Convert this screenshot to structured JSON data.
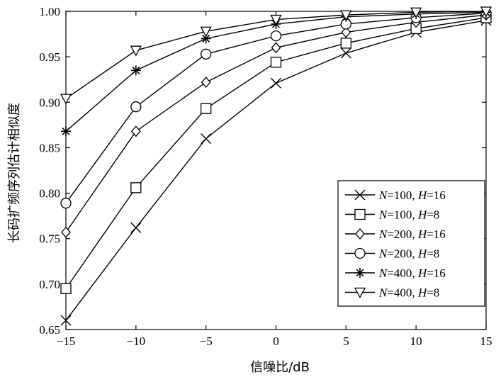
{
  "chart_data": {
    "type": "line",
    "xlabel": "信噪比/dB",
    "ylabel": "长码扩频序列估计相似度",
    "xlim": [
      -15,
      15
    ],
    "ylim": [
      0.65,
      1.0
    ],
    "xticks": [
      "−15",
      "−10",
      "−5",
      "0",
      "5",
      "10",
      "15"
    ],
    "xtick_values": [
      -15,
      -10,
      -5,
      0,
      5,
      10,
      15
    ],
    "yticks": [
      "0.65",
      "0.70",
      "0.75",
      "0.80",
      "0.85",
      "0.90",
      "0.95",
      "1.00"
    ],
    "ytick_values": [
      0.65,
      0.7,
      0.75,
      0.8,
      0.85,
      0.9,
      0.95,
      1.0
    ],
    "x": [
      -15,
      -10,
      -5,
      0,
      5,
      10,
      15
    ],
    "grid": false,
    "legend_position": "bottom-right",
    "series": [
      {
        "name": "N=100, H=16",
        "N": "100",
        "H": "16",
        "marker": "x",
        "values": [
          0.66,
          0.762,
          0.86,
          0.921,
          0.954,
          0.977,
          0.99
        ]
      },
      {
        "name": "N=100, H=8",
        "N": "100",
        "H": "8",
        "marker": "square",
        "values": [
          0.695,
          0.806,
          0.893,
          0.944,
          0.965,
          0.981,
          0.993
        ]
      },
      {
        "name": "N=200, H=16",
        "N": "200",
        "H": "16",
        "marker": "diamond",
        "values": [
          0.757,
          0.868,
          0.922,
          0.96,
          0.977,
          0.988,
          0.996
        ]
      },
      {
        "name": "N=200, H=8",
        "N": "200",
        "H": "8",
        "marker": "circle",
        "values": [
          0.789,
          0.895,
          0.953,
          0.973,
          0.986,
          0.993,
          0.998
        ]
      },
      {
        "name": "N=400, H=16",
        "N": "400",
        "H": "16",
        "marker": "star",
        "values": [
          0.868,
          0.935,
          0.97,
          0.986,
          0.994,
          0.997,
          0.999
        ]
      },
      {
        "name": "N=400, H=8",
        "N": "400",
        "H": "8",
        "marker": "triangle-down",
        "values": [
          0.904,
          0.957,
          0.978,
          0.991,
          0.996,
          0.999,
          1.0
        ]
      }
    ],
    "legend_sep": ", ",
    "legend_eq": "="
  }
}
